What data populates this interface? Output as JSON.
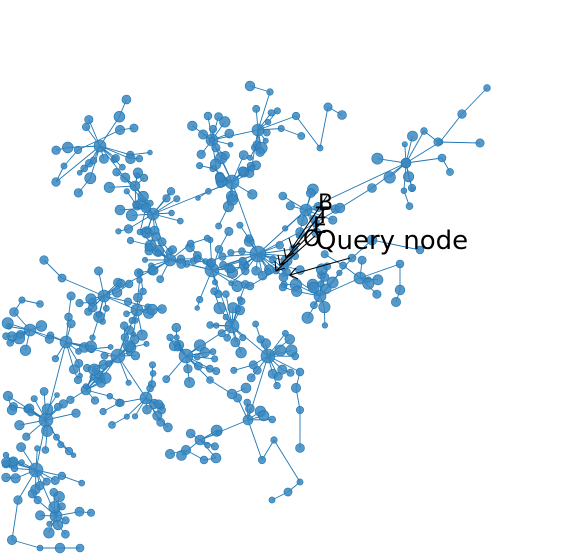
{
  "graph": {
    "node_color": "#3a87c0",
    "edge_color": "#1f77b4",
    "annotation_color": "#000000"
  },
  "annotations": [
    {
      "id": "b",
      "text": "B"
    },
    {
      "id": "t",
      "text": "T"
    },
    {
      "id": "e",
      "text": "E"
    },
    {
      "id": "o",
      "text": "O"
    },
    {
      "id": "query",
      "text": "Query node"
    }
  ]
}
